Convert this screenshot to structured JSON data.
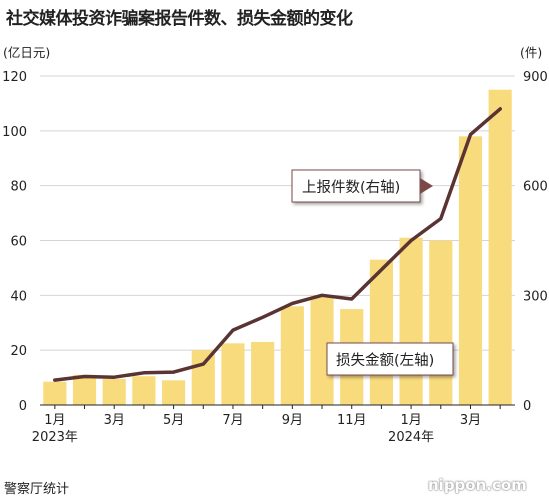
{
  "title": "社交媒体投资诈骗案报告件数、损失金额的变化",
  "source": "警察厅统计",
  "watermark": "nippon.com",
  "colors": {
    "bar": "#f8db7d",
    "line": "#5a3333",
    "grid": "#d4d4d4",
    "callout_border": "#7a4a4a"
  },
  "chart_data": {
    "type": "bar",
    "title": "社交媒体投资诈骗案报告件数、损失金额的变化",
    "categories": [
      "2023-01",
      "2023-02",
      "2023-03",
      "2023-04",
      "2023-05",
      "2023-06",
      "2023-07",
      "2023-08",
      "2023-09",
      "2023-10",
      "2023-11",
      "2023-12",
      "2024-01",
      "2024-02",
      "2024-03",
      "2024-04"
    ],
    "x_tick_labels": [
      {
        "index": 0,
        "label": "1月",
        "year": "2023年"
      },
      {
        "index": 2,
        "label": "3月"
      },
      {
        "index": 4,
        "label": "5月"
      },
      {
        "index": 6,
        "label": "7月"
      },
      {
        "index": 8,
        "label": "9月"
      },
      {
        "index": 10,
        "label": "11月"
      },
      {
        "index": 12,
        "label": "1月",
        "year": "2024年"
      },
      {
        "index": 14,
        "label": "3月"
      }
    ],
    "series": [
      {
        "name": "损失金额(左轴)",
        "type": "bar",
        "axis": "left",
        "values": [
          8.5,
          11,
          9.5,
          10.5,
          9,
          20,
          22.5,
          23,
          36,
          40,
          35,
          53,
          61,
          60,
          98,
          115
        ]
      },
      {
        "name": "上报件数(右轴)",
        "type": "line",
        "axis": "right",
        "values": [
          68,
          78,
          76,
          88,
          90,
          112,
          205,
          240,
          278,
          300,
          290,
          370,
          450,
          510,
          740,
          810
        ]
      }
    ],
    "y_left": {
      "unit": "(亿日元)",
      "ticks": [
        0,
        20,
        40,
        60,
        80,
        100,
        120
      ],
      "ylim": [
        0,
        120
      ]
    },
    "y_right": {
      "unit": "(件)",
      "ticks": [
        0,
        300,
        600,
        900
      ],
      "ylim": [
        0,
        900
      ]
    },
    "grid": true,
    "legend": "inline callout labels"
  }
}
